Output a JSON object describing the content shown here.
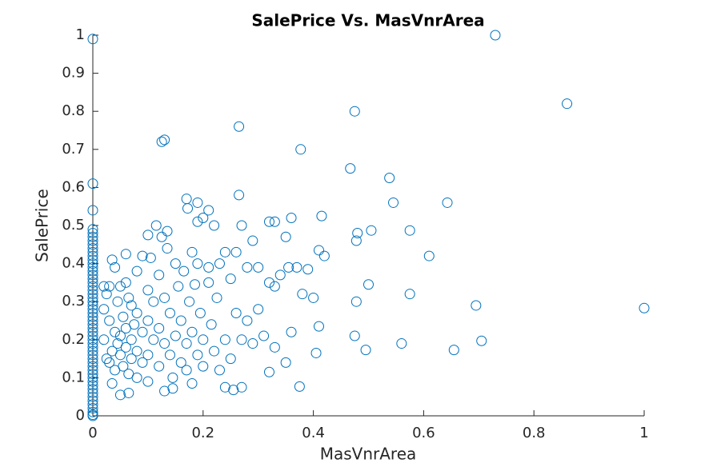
{
  "chart_data": {
    "type": "scatter",
    "title": "SalePrice Vs. MasVnrArea",
    "x_label": "MasVnrArea",
    "y_label": "SalePrice",
    "color": "#0072BD",
    "xlim": [
      0,
      1
    ],
    "ylim": [
      0,
      1
    ],
    "xticks": [
      0,
      0.2,
      0.4,
      0.6,
      0.8,
      1
    ],
    "yticks": [
      0,
      0.1,
      0.2,
      0.3,
      0.4,
      0.5,
      0.6,
      0.7,
      0.8,
      0.9,
      1
    ],
    "x": [
      0,
      0,
      0,
      0,
      0,
      0,
      0,
      0,
      0,
      0,
      0,
      0,
      0,
      0,
      0,
      0,
      0,
      0,
      0,
      0,
      0,
      0,
      0,
      0,
      0,
      0,
      0,
      0,
      0,
      0,
      0,
      0,
      0,
      0,
      0,
      0,
      0,
      0,
      0,
      0,
      0,
      0,
      0,
      0,
      0,
      0,
      0,
      0,
      0,
      0,
      0,
      0,
      0,
      0,
      0.73,
      0.86,
      0.475,
      0.265,
      0.125,
      0.13,
      0.377,
      0.467,
      0.538,
      0.643,
      0.545,
      0.265,
      0.17,
      0.19,
      0.172,
      0.21,
      0.36,
      0.415,
      0.19,
      0.32,
      0.33,
      0.505,
      0.575,
      0.48,
      0.478,
      0.35,
      0.29,
      0.41,
      0.42,
      0.61,
      0.37,
      0.355,
      0.39,
      0.5,
      0.33,
      0.38,
      0.4,
      0.575,
      0.478,
      0.695,
      1,
      0.41,
      0.36,
      0.475,
      0.705,
      0.56,
      0.495,
      0.655,
      0.405,
      0.35,
      0.32,
      0.375,
      0.27,
      0.255,
      0.24,
      0.13,
      0.145,
      0.065,
      0.05,
      0.035,
      0.18,
      0.02,
      0.02,
      0.02,
      0.025,
      0.025,
      0.03,
      0.03,
      0.03,
      0.035,
      0.035,
      0.04,
      0.04,
      0.04,
      0.045,
      0.045,
      0.05,
      0.05,
      0.05,
      0.055,
      0.055,
      0.06,
      0.06,
      0.06,
      0.06,
      0.065,
      0.065,
      0.07,
      0.07,
      0.07,
      0.075,
      0.08,
      0.08,
      0.08,
      0.08,
      0.09,
      0.09,
      0.09,
      0.1,
      0.1,
      0.1,
      0.1,
      0.1,
      0.105,
      0.11,
      0.11,
      0.115,
      0.12,
      0.12,
      0.12,
      0.125,
      0.13,
      0.13,
      0.135,
      0.135,
      0.14,
      0.14,
      0.145,
      0.15,
      0.15,
      0.155,
      0.16,
      0.16,
      0.165,
      0.17,
      0.17,
      0.175,
      0.18,
      0.18,
      0.185,
      0.19,
      0.19,
      0.195,
      0.2,
      0.2,
      0.2,
      0.21,
      0.21,
      0.215,
      0.22,
      0.22,
      0.225,
      0.23,
      0.23,
      0.24,
      0.24,
      0.25,
      0.25,
      0.26,
      0.26,
      0.27,
      0.27,
      0.28,
      0.28,
      0.29,
      0.3,
      0.3,
      0.31,
      0.32,
      0.33,
      0.34
    ],
    "values": [
      0,
      0.003,
      0.01,
      0.02,
      0.03,
      0.04,
      0.05,
      0.06,
      0.07,
      0.08,
      0.09,
      0.1,
      0.11,
      0.12,
      0.13,
      0.14,
      0.15,
      0.16,
      0.17,
      0.18,
      0.19,
      0.2,
      0.21,
      0.22,
      0.23,
      0.24,
      0.25,
      0.26,
      0.27,
      0.28,
      0.29,
      0.3,
      0.31,
      0.32,
      0.33,
      0.34,
      0.35,
      0.36,
      0.37,
      0.38,
      0.39,
      0.4,
      0.41,
      0.42,
      0.43,
      0.44,
      0.45,
      0.46,
      0.47,
      0.48,
      0.49,
      0.99,
      0.61,
      0.54,
      1,
      0.82,
      0.8,
      0.76,
      0.72,
      0.725,
      0.7,
      0.65,
      0.625,
      0.56,
      0.56,
      0.58,
      0.57,
      0.56,
      0.545,
      0.54,
      0.52,
      0.525,
      0.51,
      0.51,
      0.51,
      0.487,
      0.487,
      0.48,
      0.46,
      0.47,
      0.46,
      0.435,
      0.42,
      0.42,
      0.39,
      0.39,
      0.385,
      0.345,
      0.34,
      0.32,
      0.31,
      0.32,
      0.3,
      0.29,
      0.283,
      0.235,
      0.22,
      0.21,
      0.197,
      0.19,
      0.173,
      0.173,
      0.165,
      0.14,
      0.115,
      0.077,
      0.075,
      0.068,
      0.075,
      0.065,
      0.072,
      0.06,
      0.055,
      0.085,
      0.085,
      0.34,
      0.28,
      0.2,
      0.32,
      0.15,
      0.34,
      0.14,
      0.25,
      0.17,
      0.41,
      0.39,
      0.22,
      0.12,
      0.3,
      0.19,
      0.34,
      0.21,
      0.16,
      0.26,
      0.13,
      0.425,
      0.35,
      0.23,
      0.18,
      0.31,
      0.11,
      0.29,
      0.2,
      0.15,
      0.24,
      0.38,
      0.27,
      0.17,
      0.1,
      0.42,
      0.22,
      0.14,
      0.475,
      0.33,
      0.25,
      0.16,
      0.09,
      0.415,
      0.3,
      0.2,
      0.5,
      0.37,
      0.23,
      0.13,
      0.47,
      0.31,
      0.19,
      0.485,
      0.44,
      0.27,
      0.16,
      0.1,
      0.4,
      0.21,
      0.34,
      0.14,
      0.25,
      0.38,
      0.19,
      0.12,
      0.3,
      0.43,
      0.22,
      0.345,
      0.4,
      0.16,
      0.27,
      0.52,
      0.2,
      0.13,
      0.39,
      0.35,
      0.24,
      0.5,
      0.17,
      0.31,
      0.4,
      0.12,
      0.43,
      0.2,
      0.36,
      0.15,
      0.27,
      0.43,
      0.5,
      0.2,
      0.39,
      0.25,
      0.19,
      0.28,
      0.39,
      0.21,
      0.35,
      0.18,
      0.37
    ]
  }
}
